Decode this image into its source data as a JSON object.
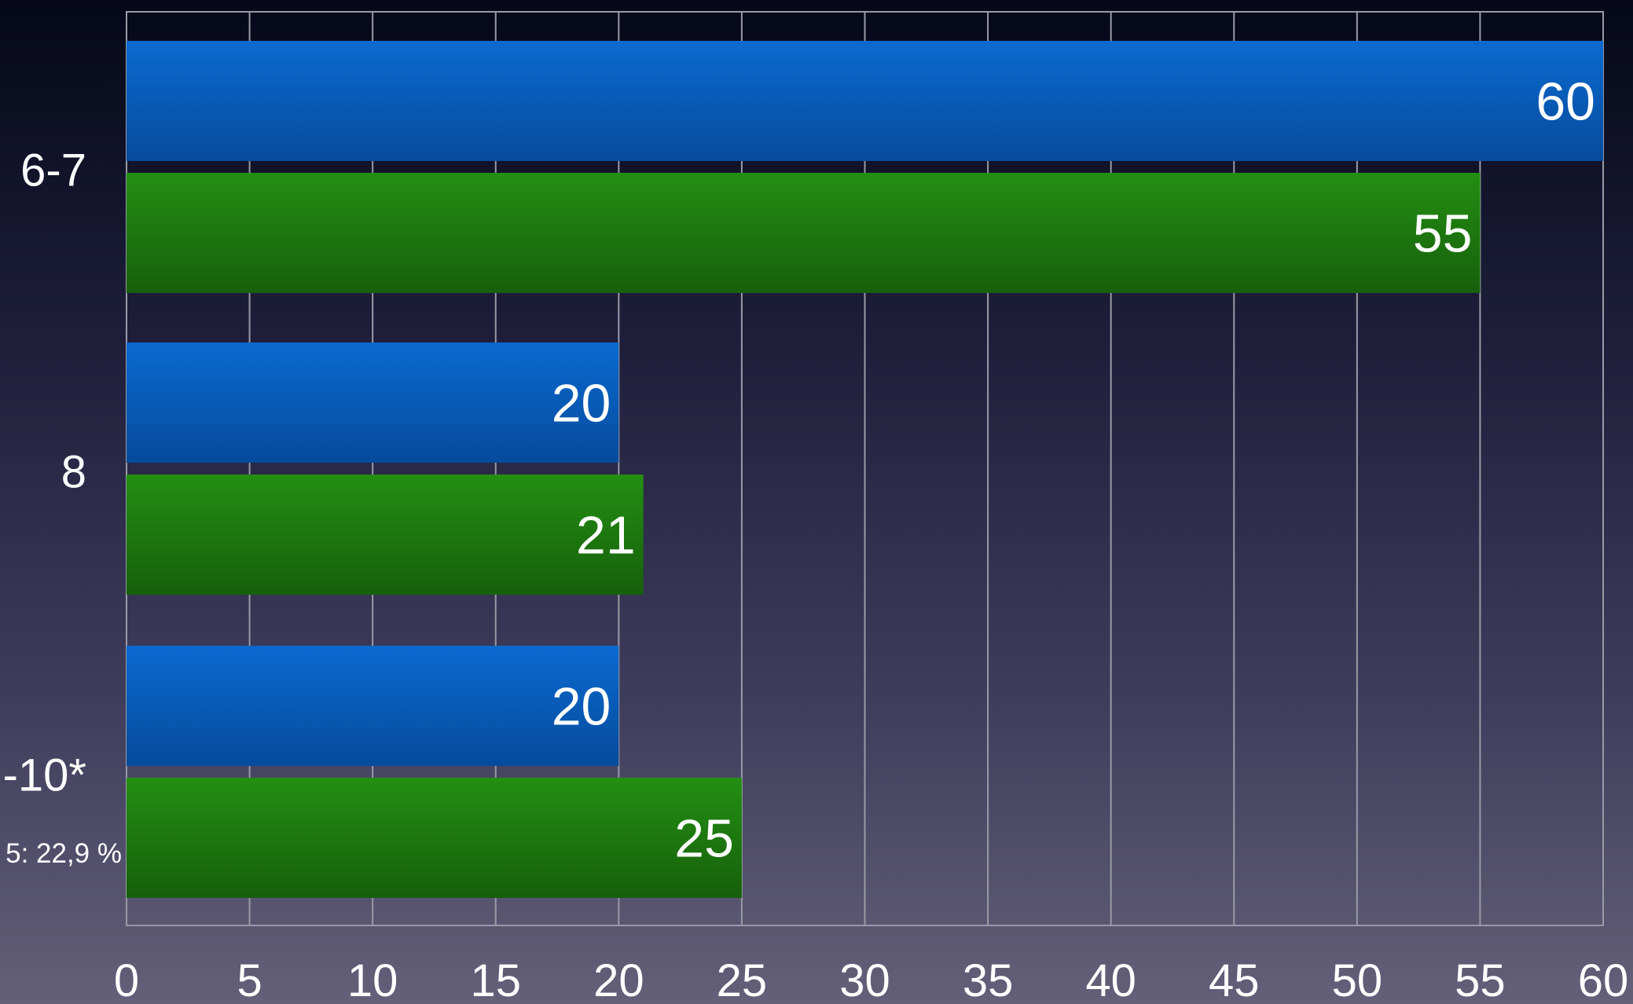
{
  "chart_data": {
    "type": "bar",
    "orientation": "horizontal",
    "categories": [
      "6-7",
      "8",
      "-10*"
    ],
    "series": [
      {
        "color": "#0a5fc0",
        "values": [
          60,
          20,
          20
        ]
      },
      {
        "color": "#1e8a12",
        "values": [
          55,
          21,
          25
        ]
      }
    ],
    "x_ticks": [
      "0",
      "5",
      "10",
      "15",
      "20",
      "25",
      "30",
      "35",
      "40",
      "45",
      "50",
      "55",
      "60"
    ],
    "xlim": [
      0,
      60
    ],
    "grid": "vertical",
    "data_labels": true,
    "annotations": [
      "5: 22,9 %"
    ],
    "colors": {
      "grid": "#9a9aa6",
      "text": "#ffffff"
    }
  }
}
